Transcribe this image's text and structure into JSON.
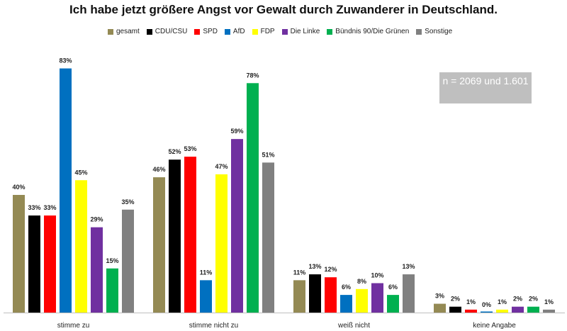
{
  "chart_data": {
    "type": "bar",
    "title": "Ich habe jetzt größere Angst vor Gewalt durch Zuwanderer in Deutschland.",
    "annotation": "n = 2069 und 1.601",
    "categories": [
      "stimme zu",
      "stimme nicht zu",
      "weiß nicht",
      "keine Angabe"
    ],
    "ylim": [
      0,
      100
    ],
    "grid": false,
    "legend_position": "top",
    "series": [
      {
        "name": "gesamt",
        "color": "#948a54",
        "values": [
          40,
          46,
          11,
          3
        ],
        "labels": [
          "40%",
          "46%",
          "11%",
          "3%"
        ]
      },
      {
        "name": "CDU/CSU",
        "color": "#000000",
        "values": [
          33,
          52,
          13,
          2
        ],
        "labels": [
          "33%",
          "52%",
          "13%",
          "2%"
        ]
      },
      {
        "name": "SPD",
        "color": "#ff0000",
        "values": [
          33,
          53,
          12,
          1
        ],
        "labels": [
          "33%",
          "53%",
          "12%",
          "1%"
        ]
      },
      {
        "name": "AfD",
        "color": "#0070c0",
        "values": [
          83,
          11,
          6,
          0
        ],
        "labels": [
          "83%",
          "11%",
          "6%",
          "0%"
        ]
      },
      {
        "name": "FDP",
        "color": "#ffff00",
        "values": [
          45,
          47,
          8,
          1
        ],
        "labels": [
          "45%",
          "47%",
          "8%",
          "1%"
        ]
      },
      {
        "name": "Die Linke",
        "color": "#7030a0",
        "values": [
          29,
          59,
          10,
          2
        ],
        "labels": [
          "29%",
          "59%",
          "10%",
          "2%"
        ]
      },
      {
        "name": "Bündnis 90/Die Grünen",
        "color": "#00b050",
        "values": [
          15,
          78,
          6,
          2
        ],
        "labels": [
          "15%",
          "78%",
          "6%",
          "2%"
        ]
      },
      {
        "name": "Sonstige",
        "color": "#808080",
        "values": [
          35,
          51,
          13,
          1
        ],
        "labels": [
          "35%",
          "51%",
          "13%",
          "1%"
        ]
      }
    ]
  }
}
